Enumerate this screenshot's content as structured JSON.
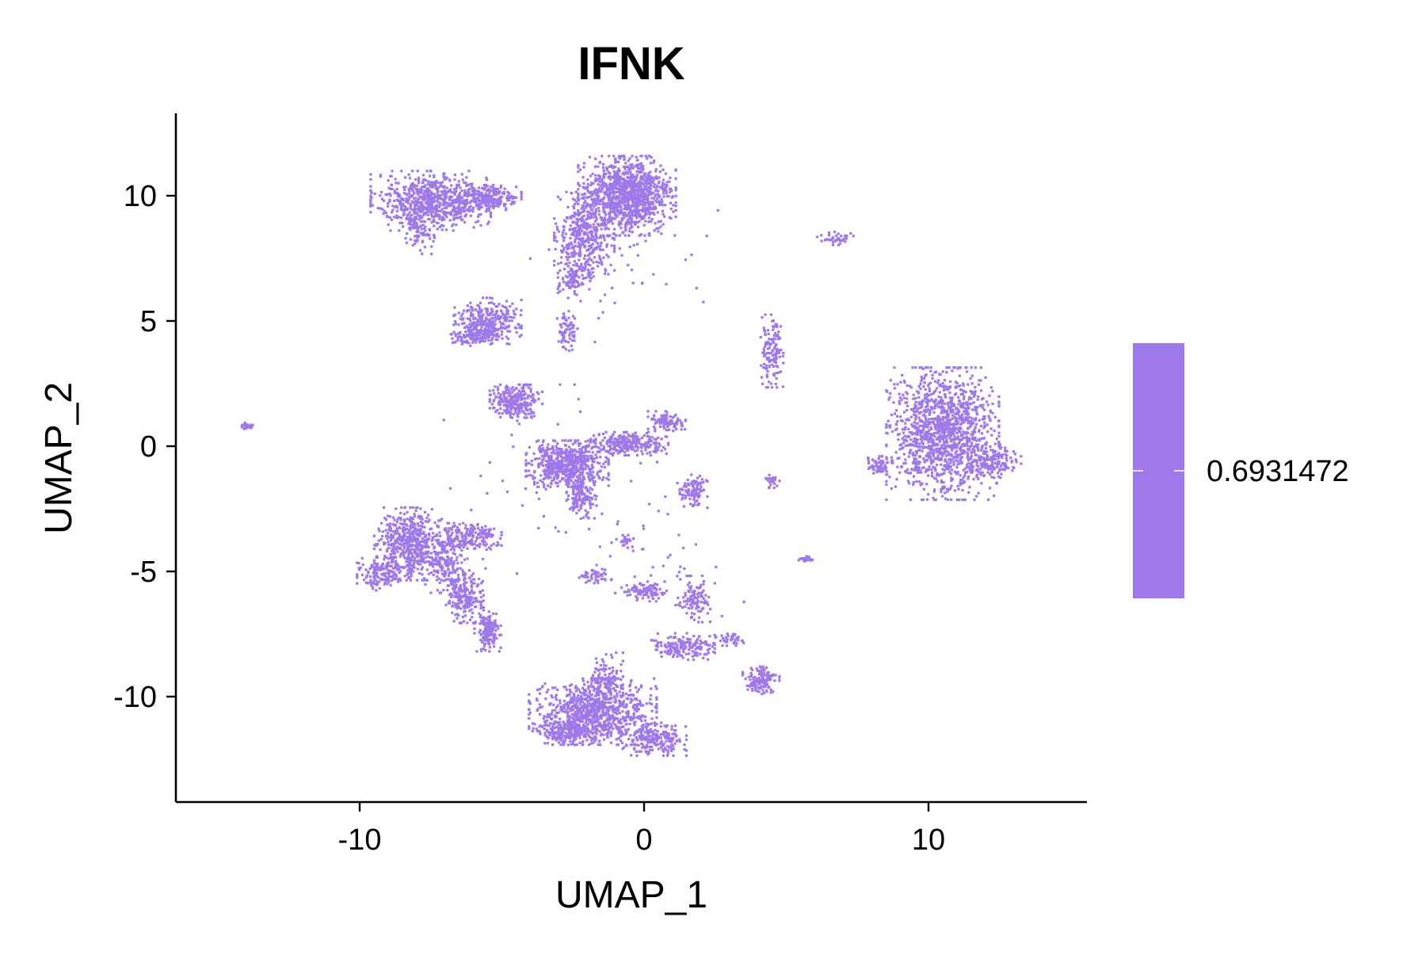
{
  "chart_data": {
    "type": "scatter",
    "title": "IFNK",
    "xlabel": "UMAP_1",
    "ylabel": "UMAP_2",
    "xlim": [
      -16.5,
      15.5
    ],
    "ylim": [
      -14,
      13.2
    ],
    "xticks": [
      -10,
      0,
      10
    ],
    "yticks": [
      -10,
      -5,
      0,
      5,
      10
    ],
    "xtick_labels": [
      "-10",
      "0",
      "10"
    ],
    "ytick_labels": [
      "-10",
      "-5",
      "0",
      "5",
      "10"
    ],
    "point_color": "#9f78e9",
    "legend": {
      "type": "colorbar",
      "placement": "right",
      "value_label": "0.6931472",
      "color": "#9f78e9"
    },
    "clusters": [
      {
        "cx": -7.5,
        "cy": 9.8,
        "rx": 1.6,
        "ry": 0.9,
        "n": 700
      },
      {
        "cx": -5.5,
        "cy": 9.9,
        "rx": 0.9,
        "ry": 0.4,
        "n": 250
      },
      {
        "cx": -7.9,
        "cy": 8.6,
        "rx": 0.4,
        "ry": 0.7,
        "n": 80
      },
      {
        "cx": -0.6,
        "cy": 10.0,
        "rx": 1.3,
        "ry": 1.2,
        "n": 1100
      },
      {
        "cx": -2.1,
        "cy": 8.3,
        "rx": 0.8,
        "ry": 1.4,
        "n": 400
      },
      {
        "cx": -2.5,
        "cy": 6.7,
        "rx": 0.4,
        "ry": 0.6,
        "n": 80
      },
      {
        "cx": 6.7,
        "cy": 8.3,
        "rx": 0.5,
        "ry": 0.2,
        "n": 40
      },
      {
        "cx": -5.5,
        "cy": 5.0,
        "rx": 0.9,
        "ry": 0.7,
        "n": 300
      },
      {
        "cx": -6.0,
        "cy": 4.4,
        "rx": 0.6,
        "ry": 0.3,
        "n": 120
      },
      {
        "cx": -2.7,
        "cy": 4.6,
        "rx": 0.3,
        "ry": 0.6,
        "n": 70
      },
      {
        "cx": 4.5,
        "cy": 3.8,
        "rx": 0.3,
        "ry": 1.1,
        "n": 130
      },
      {
        "cx": -4.5,
        "cy": 1.8,
        "rx": 0.7,
        "ry": 0.5,
        "n": 280
      },
      {
        "cx": -14.0,
        "cy": 0.8,
        "rx": 0.2,
        "ry": 0.1,
        "n": 25
      },
      {
        "cx": -2.7,
        "cy": -0.7,
        "rx": 1.1,
        "ry": 0.7,
        "n": 600
      },
      {
        "cx": -0.6,
        "cy": 0.1,
        "rx": 1.1,
        "ry": 0.35,
        "n": 250
      },
      {
        "cx": 0.8,
        "cy": 1.0,
        "rx": 0.5,
        "ry": 0.3,
        "n": 100
      },
      {
        "cx": -2.2,
        "cy": -2.1,
        "rx": 0.4,
        "ry": 0.6,
        "n": 120
      },
      {
        "cx": 1.7,
        "cy": -1.8,
        "rx": 0.4,
        "ry": 0.5,
        "n": 100
      },
      {
        "cx": 4.5,
        "cy": -1.4,
        "rx": 0.2,
        "ry": 0.2,
        "n": 25
      },
      {
        "cx": -0.6,
        "cy": -3.8,
        "rx": 0.2,
        "ry": 0.3,
        "n": 20
      },
      {
        "cx": 5.7,
        "cy": -4.5,
        "rx": 0.2,
        "ry": 0.1,
        "n": 20
      },
      {
        "cx": 10.5,
        "cy": 0.5,
        "rx": 1.5,
        "ry": 2.0,
        "n": 1300
      },
      {
        "cx": 12.2,
        "cy": -0.6,
        "rx": 0.8,
        "ry": 0.5,
        "n": 160
      },
      {
        "cx": 8.2,
        "cy": -0.8,
        "rx": 0.4,
        "ry": 0.3,
        "n": 60
      },
      {
        "cx": -8.3,
        "cy": -3.9,
        "rx": 0.9,
        "ry": 1.1,
        "n": 550
      },
      {
        "cx": -6.2,
        "cy": -3.6,
        "rx": 0.9,
        "ry": 0.4,
        "n": 200
      },
      {
        "cx": -9.3,
        "cy": -5.1,
        "rx": 0.6,
        "ry": 0.5,
        "n": 130
      },
      {
        "cx": -6.3,
        "cy": -6.0,
        "rx": 0.5,
        "ry": 0.8,
        "n": 220
      },
      {
        "cx": -5.5,
        "cy": -7.4,
        "rx": 0.35,
        "ry": 0.6,
        "n": 160
      },
      {
        "cx": -7.0,
        "cy": -4.8,
        "rx": 0.6,
        "ry": 0.8,
        "n": 150
      },
      {
        "cx": 0.0,
        "cy": -5.8,
        "rx": 0.6,
        "ry": 0.3,
        "n": 100
      },
      {
        "cx": -1.7,
        "cy": -5.2,
        "rx": 0.5,
        "ry": 0.2,
        "n": 40
      },
      {
        "cx": 1.8,
        "cy": -6.1,
        "rx": 0.4,
        "ry": 0.7,
        "n": 100
      },
      {
        "cx": 1.3,
        "cy": -8.0,
        "rx": 0.9,
        "ry": 0.4,
        "n": 170
      },
      {
        "cx": 3.0,
        "cy": -7.7,
        "rx": 0.5,
        "ry": 0.2,
        "n": 40
      },
      {
        "cx": 4.1,
        "cy": -9.3,
        "rx": 0.5,
        "ry": 0.45,
        "n": 130
      },
      {
        "cx": -1.8,
        "cy": -10.6,
        "rx": 1.7,
        "ry": 1.0,
        "n": 800
      },
      {
        "cx": -1.4,
        "cy": -9.3,
        "rx": 0.5,
        "ry": 0.8,
        "n": 120
      },
      {
        "cx": -2.6,
        "cy": -11.4,
        "rx": 1.0,
        "ry": 0.4,
        "n": 250
      },
      {
        "cx": 0.3,
        "cy": -11.7,
        "rx": 0.9,
        "ry": 0.5,
        "n": 220
      },
      {
        "cx": -0.7,
        "cy": 6.8,
        "rx": 2.5,
        "ry": 2.0,
        "n": 40
      },
      {
        "cx": -3.5,
        "cy": -1.5,
        "rx": 3.0,
        "ry": 3.0,
        "n": 60
      },
      {
        "cx": 0.5,
        "cy": -4.5,
        "rx": 2.5,
        "ry": 2.0,
        "n": 50
      }
    ]
  }
}
